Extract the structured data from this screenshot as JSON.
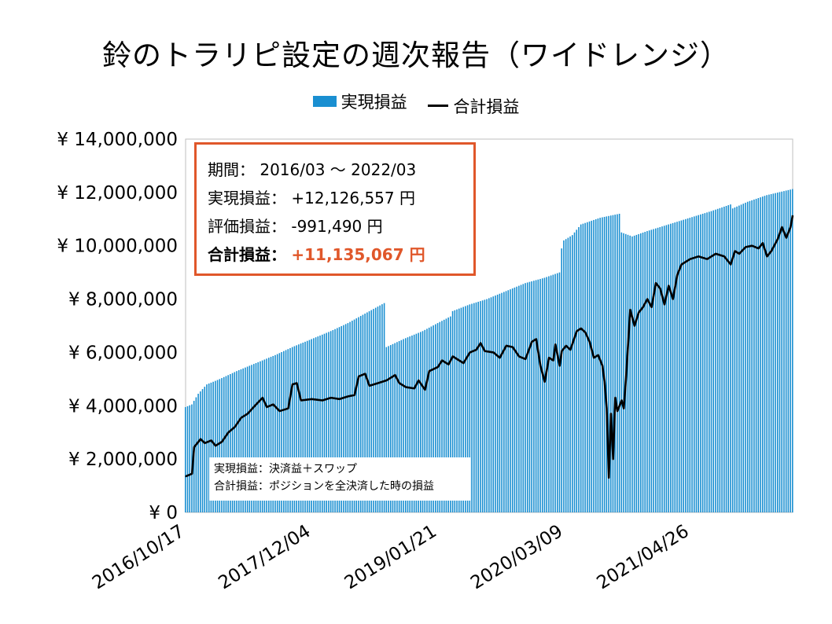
{
  "chart_data": {
    "type": "bar",
    "title": "鈴のトラリピ設定の週次報告（ワイドレンジ）",
    "legend_position": "top",
    "grid": false,
    "ylim": [
      0,
      14000000
    ],
    "yticks": [
      "¥ 14,000,000",
      "¥ 12,000,000",
      "¥ 10,000,000",
      "¥ 8,000,000",
      "¥ 6,000,000",
      "¥ 4,000,000",
      "¥ 2,000,000",
      "¥ 0"
    ],
    "xticks": [
      "2016/10/17",
      "2017/12/04",
      "2019/01/21",
      "2020/03/09",
      "2021/04/26"
    ],
    "x_start": "2016/10/17",
    "x_end": "2022/03/28",
    "series": [
      {
        "name": "実現損益",
        "kind": "bar",
        "color": "#1a8fd1",
        "points": [
          [
            "2016/10/17",
            3950000
          ],
          [
            "2016/11/07",
            4050000
          ],
          [
            "2016/11/28",
            4450000
          ],
          [
            "2016/12/26",
            4800000
          ],
          [
            "2017/02/06",
            5000000
          ],
          [
            "2017/04/03",
            5300000
          ],
          [
            "2017/06/05",
            5600000
          ],
          [
            "2017/08/07",
            5900000
          ],
          [
            "2017/10/02",
            6200000
          ],
          [
            "2017/12/04",
            6500000
          ],
          [
            "2018/02/05",
            6800000
          ],
          [
            "2018/04/02",
            7100000
          ],
          [
            "2018/06/04",
            7500000
          ],
          [
            "2018/07/30",
            7850000
          ],
          [
            "2018/08/06",
            6200000
          ],
          [
            "2018/10/01",
            6500000
          ],
          [
            "2018/12/03",
            6800000
          ],
          [
            "2019/01/21",
            7100000
          ],
          [
            "2019/03/04",
            7350000
          ],
          [
            "2019/03/11",
            7550000
          ],
          [
            "2019/05/06",
            7800000
          ],
          [
            "2019/07/01",
            8000000
          ],
          [
            "2019/09/02",
            8300000
          ],
          [
            "2019/11/04",
            8600000
          ],
          [
            "2020/01/06",
            8800000
          ],
          [
            "2020/02/24",
            9000000
          ],
          [
            "2020/03/02",
            9900000
          ],
          [
            "2020/03/09",
            10200000
          ],
          [
            "2020/04/06",
            10400000
          ],
          [
            "2020/05/04",
            10800000
          ],
          [
            "2020/07/06",
            11050000
          ],
          [
            "2020/09/07",
            11200000
          ],
          [
            "2020/09/14",
            10500000
          ],
          [
            "2020/10/19",
            10350000
          ],
          [
            "2020/12/07",
            10550000
          ],
          [
            "2021/02/01",
            10750000
          ],
          [
            "2021/04/26",
            11050000
          ],
          [
            "2021/07/05",
            11300000
          ],
          [
            "2021/09/06",
            11550000
          ],
          [
            "2021/09/13",
            11400000
          ],
          [
            "2021/11/01",
            11650000
          ],
          [
            "2022/01/03",
            11900000
          ],
          [
            "2022/03/28",
            12126557
          ]
        ]
      },
      {
        "name": "合計損益",
        "kind": "line",
        "color": "#000000",
        "points": [
          [
            "2016/10/17",
            1350000
          ],
          [
            "2016/11/07",
            1450000
          ],
          [
            "2016/11/14",
            2450000
          ],
          [
            "2016/12/05",
            2750000
          ],
          [
            "2016/12/19",
            2600000
          ],
          [
            "2017/01/09",
            2700000
          ],
          [
            "2017/01/23",
            2500000
          ],
          [
            "2017/02/13",
            2650000
          ],
          [
            "2017/03/06",
            3000000
          ],
          [
            "2017/03/27",
            3200000
          ],
          [
            "2017/04/17",
            3550000
          ],
          [
            "2017/05/08",
            3700000
          ],
          [
            "2017/06/05",
            4050000
          ],
          [
            "2017/06/26",
            4300000
          ],
          [
            "2017/07/10",
            3950000
          ],
          [
            "2017/07/31",
            4050000
          ],
          [
            "2017/08/21",
            3800000
          ],
          [
            "2017/09/18",
            3900000
          ],
          [
            "2017/10/02",
            4800000
          ],
          [
            "2017/10/16",
            4850000
          ],
          [
            "2017/10/30",
            4200000
          ],
          [
            "2017/12/04",
            4250000
          ],
          [
            "2018/01/08",
            4200000
          ],
          [
            "2018/02/05",
            4300000
          ],
          [
            "2018/03/05",
            4250000
          ],
          [
            "2018/04/02",
            4350000
          ],
          [
            "2018/04/23",
            4400000
          ],
          [
            "2018/05/07",
            5100000
          ],
          [
            "2018/05/28",
            5200000
          ],
          [
            "2018/06/11",
            4750000
          ],
          [
            "2018/07/09",
            4850000
          ],
          [
            "2018/08/06",
            4950000
          ],
          [
            "2018/09/03",
            5150000
          ],
          [
            "2018/09/17",
            4850000
          ],
          [
            "2018/10/08",
            4700000
          ],
          [
            "2018/11/05",
            4650000
          ],
          [
            "2018/11/19",
            4950000
          ],
          [
            "2018/12/10",
            4600000
          ],
          [
            "2018/12/24",
            5300000
          ],
          [
            "2019/01/21",
            5450000
          ],
          [
            "2019/02/04",
            5700000
          ],
          [
            "2019/02/25",
            5550000
          ],
          [
            "2019/03/11",
            5850000
          ],
          [
            "2019/04/01",
            5700000
          ],
          [
            "2019/04/15",
            5600000
          ],
          [
            "2019/05/06",
            6000000
          ],
          [
            "2019/05/27",
            6100000
          ],
          [
            "2019/06/10",
            6350000
          ],
          [
            "2019/06/24",
            6050000
          ],
          [
            "2019/07/22",
            6000000
          ],
          [
            "2019/08/12",
            5800000
          ],
          [
            "2019/09/02",
            6250000
          ],
          [
            "2019/09/23",
            6200000
          ],
          [
            "2019/10/14",
            5850000
          ],
          [
            "2019/11/04",
            5750000
          ],
          [
            "2019/11/25",
            6400000
          ],
          [
            "2019/12/09",
            6500000
          ],
          [
            "2019/12/23",
            5500000
          ],
          [
            "2020/01/06",
            4900000
          ],
          [
            "2020/01/20",
            5800000
          ],
          [
            "2020/02/03",
            5700000
          ],
          [
            "2020/02/10",
            6300000
          ],
          [
            "2020/02/24",
            5500000
          ],
          [
            "2020/03/02",
            6050000
          ],
          [
            "2020/03/16",
            6250000
          ],
          [
            "2020/03/30",
            6100000
          ],
          [
            "2020/04/20",
            6800000
          ],
          [
            "2020/05/04",
            6900000
          ],
          [
            "2020/05/18",
            6750000
          ],
          [
            "2020/06/01",
            6400000
          ],
          [
            "2020/06/15",
            5800000
          ],
          [
            "2020/06/29",
            5900000
          ],
          [
            "2020/07/13",
            5500000
          ],
          [
            "2020/07/20",
            4900000
          ],
          [
            "2020/07/27",
            3900000
          ],
          [
            "2020/08/03",
            1300000
          ],
          [
            "2020/08/10",
            3700000
          ],
          [
            "2020/08/17",
            2000000
          ],
          [
            "2020/08/24",
            4300000
          ],
          [
            "2020/08/31",
            3800000
          ],
          [
            "2020/09/14",
            4200000
          ],
          [
            "2020/09/21",
            3900000
          ],
          [
            "2020/09/28",
            5000000
          ],
          [
            "2020/10/12",
            7600000
          ],
          [
            "2020/10/26",
            7000000
          ],
          [
            "2020/11/09",
            7500000
          ],
          [
            "2020/11/23",
            7700000
          ],
          [
            "2020/12/07",
            8000000
          ],
          [
            "2020/12/21",
            7700000
          ],
          [
            "2021/01/04",
            8600000
          ],
          [
            "2021/01/18",
            8400000
          ],
          [
            "2021/02/01",
            7800000
          ],
          [
            "2021/02/15",
            8500000
          ],
          [
            "2021/03/01",
            8000000
          ],
          [
            "2021/03/15",
            8900000
          ],
          [
            "2021/03/29",
            9300000
          ],
          [
            "2021/04/26",
            9500000
          ],
          [
            "2021/05/24",
            9600000
          ],
          [
            "2021/06/21",
            9500000
          ],
          [
            "2021/07/19",
            9700000
          ],
          [
            "2021/08/16",
            9600000
          ],
          [
            "2021/09/06",
            9300000
          ],
          [
            "2021/09/20",
            9800000
          ],
          [
            "2021/10/04",
            9700000
          ],
          [
            "2021/10/25",
            9950000
          ],
          [
            "2021/11/15",
            10000000
          ],
          [
            "2021/12/06",
            9900000
          ],
          [
            "2021/12/20",
            10100000
          ],
          [
            "2022/01/03",
            9600000
          ],
          [
            "2022/01/17",
            9800000
          ],
          [
            "2022/02/07",
            10250000
          ],
          [
            "2022/02/21",
            10700000
          ],
          [
            "2022/03/07",
            10300000
          ],
          [
            "2022/03/21",
            10700000
          ],
          [
            "2022/03/28",
            11135067
          ]
        ]
      }
    ]
  },
  "infobox": {
    "period_label": "期間：",
    "period_value": "2016/03 ～ 2022/03",
    "realized_label": "実現損益：",
    "realized_value": "+12,126,557 円",
    "unrealized_label": "評価損益：",
    "unrealized_value": "-991,490 円",
    "total_label": "合計損益：",
    "total_value": "+11,135,067 円"
  },
  "notes": [
    "実現損益：決済益＋スワップ",
    "合計損益：ポジションを全決済した時の損益"
  ],
  "colors": {
    "bar": "#1a8fd1",
    "line": "#000000",
    "accent": "#e0572a",
    "axis": "#bfbfbf"
  }
}
